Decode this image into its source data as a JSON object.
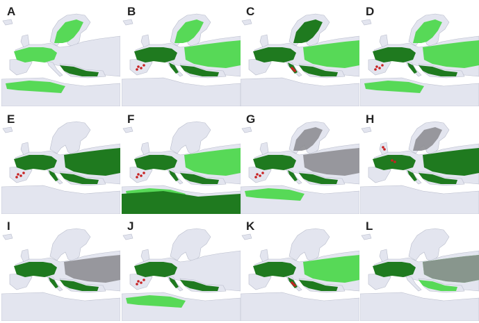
{
  "colors": {
    "land": "#e3e5ef",
    "border": "#b8bccb",
    "sea": "#ffffff",
    "light_green": "#57d957",
    "dark_green": "#1f7a1f",
    "gray": "#8e8e94",
    "red": "#c82222"
  },
  "panels": [
    {
      "label": "A",
      "light_green": [
        "we",
        "scand",
        "nafrica"
      ],
      "dark_green": [
        "balkan"
      ],
      "gray": [],
      "red": []
    },
    {
      "label": "B",
      "light_green": [
        "east",
        "scand"
      ],
      "dark_green": [
        "we",
        "italy",
        "balkan"
      ],
      "gray": [],
      "red": [
        "iberia"
      ]
    },
    {
      "label": "C",
      "light_green": [
        "east"
      ],
      "dark_green": [
        "we",
        "italy",
        "balkan",
        "scand"
      ],
      "gray": [],
      "red": [
        "italy"
      ]
    },
    {
      "label": "D",
      "light_green": [
        "east",
        "scand",
        "nafrica"
      ],
      "dark_green": [
        "we",
        "italy",
        "balkan"
      ],
      "gray": [],
      "red": [
        "iberia"
      ]
    },
    {
      "label": "E",
      "light_green": [],
      "dark_green": [
        "we",
        "italy",
        "balkan",
        "east"
      ],
      "gray": [],
      "red": [
        "iberia"
      ]
    },
    {
      "label": "F",
      "light_green": [
        "nafrica",
        "east"
      ],
      "dark_green": [
        "we",
        "italy",
        "balkan",
        "sahara"
      ],
      "gray": [],
      "red": [
        "iberia"
      ]
    },
    {
      "label": "G",
      "light_green": [
        "nafrica"
      ],
      "dark_green": [
        "we",
        "italy",
        "balkan"
      ],
      "gray": [
        "east",
        "scand"
      ],
      "red": [
        "iberia"
      ]
    },
    {
      "label": "H",
      "light_green": [],
      "dark_green": [
        "we",
        "italy",
        "balkan",
        "east"
      ],
      "gray": [
        "scand"
      ],
      "red": [
        "uk",
        "france"
      ]
    },
    {
      "label": "I",
      "light_green": [],
      "dark_green": [
        "we",
        "italy",
        "balkan"
      ],
      "gray": [
        "east"
      ],
      "red": []
    },
    {
      "label": "J",
      "light_green": [
        "nafrica"
      ],
      "dark_green": [
        "we",
        "italy",
        "balkan"
      ],
      "gray": [],
      "red": [
        "iberia"
      ]
    },
    {
      "label": "K",
      "light_green": [
        "east"
      ],
      "dark_green": [
        "we",
        "italy",
        "balkan"
      ],
      "gray": [],
      "red": [
        "italy"
      ]
    },
    {
      "label": "L",
      "light_green": [
        "east",
        "balkan"
      ],
      "dark_green": [
        "we"
      ],
      "gray": [
        "east"
      ],
      "red": []
    }
  ]
}
